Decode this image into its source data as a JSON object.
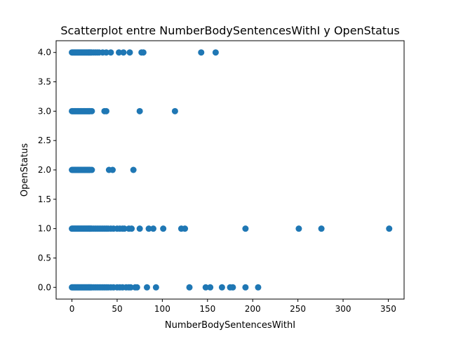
{
  "chart_data": {
    "type": "scatter",
    "title": "Scatterplot entre NumberBodySentencesWithI y OpenStatus",
    "xlabel": "NumberBodySentencesWithI",
    "ylabel": "OpenStatus",
    "xlim": [
      -17.5,
      367.5
    ],
    "ylim": [
      -0.2,
      4.2
    ],
    "xticks": [
      0,
      50,
      100,
      150,
      200,
      250,
      300,
      350
    ],
    "xtick_labels": [
      "0",
      "50",
      "100",
      "150",
      "200",
      "250",
      "300",
      "350"
    ],
    "yticks": [
      0.0,
      0.5,
      1.0,
      1.5,
      2.0,
      2.5,
      3.0,
      3.5,
      4.0
    ],
    "ytick_labels": [
      "0.0",
      "0.5",
      "1.0",
      "1.5",
      "2.0",
      "2.5",
      "3.0",
      "3.5",
      "4.0"
    ],
    "grid": false,
    "legend": "none",
    "marker_color": "#1f77b4",
    "series": [
      {
        "x": [
          0,
          1,
          2,
          3,
          4,
          5,
          6,
          7,
          8,
          9,
          10,
          11,
          12,
          13,
          14,
          15,
          16,
          17,
          18,
          19,
          20,
          21,
          22,
          24,
          26,
          28,
          30,
          32,
          34,
          36,
          38,
          40,
          43,
          46,
          50,
          53,
          56,
          60,
          63,
          65,
          70,
          72,
          83,
          93,
          130,
          148,
          153,
          166,
          175,
          178,
          192,
          206,
          0,
          1,
          2,
          3,
          4,
          5,
          6,
          7,
          8,
          9,
          10,
          11,
          12,
          13,
          14,
          15,
          16,
          17,
          18,
          19,
          20,
          21,
          22,
          24,
          26,
          28,
          30,
          32,
          34,
          36,
          38,
          40,
          43,
          46,
          50,
          53,
          56,
          58,
          63,
          66,
          75,
          85,
          90,
          101,
          121,
          125,
          192,
          251,
          276,
          351,
          0,
          1,
          2,
          3,
          4,
          5,
          6,
          7,
          8,
          9,
          10,
          11,
          12,
          13,
          14,
          15,
          16,
          17,
          18,
          19,
          20,
          22,
          41,
          45,
          68,
          0,
          1,
          2,
          3,
          4,
          5,
          6,
          7,
          8,
          9,
          10,
          11,
          12,
          13,
          14,
          15,
          16,
          17,
          18,
          19,
          20,
          22,
          36,
          38,
          75,
          114,
          0,
          1,
          2,
          3,
          4,
          5,
          6,
          7,
          8,
          9,
          10,
          11,
          12,
          13,
          14,
          15,
          16,
          17,
          18,
          19,
          20,
          21,
          22,
          24,
          26,
          28,
          30,
          34,
          38,
          43,
          52,
          57,
          64,
          77,
          79,
          143,
          159
        ],
        "y": [
          0,
          0,
          0,
          0,
          0,
          0,
          0,
          0,
          0,
          0,
          0,
          0,
          0,
          0,
          0,
          0,
          0,
          0,
          0,
          0,
          0,
          0,
          0,
          0,
          0,
          0,
          0,
          0,
          0,
          0,
          0,
          0,
          0,
          0,
          0,
          0,
          0,
          0,
          0,
          0,
          0,
          0,
          0,
          0,
          0,
          0,
          0,
          0,
          0,
          0,
          0,
          0,
          1,
          1,
          1,
          1,
          1,
          1,
          1,
          1,
          1,
          1,
          1,
          1,
          1,
          1,
          1,
          1,
          1,
          1,
          1,
          1,
          1,
          1,
          1,
          1,
          1,
          1,
          1,
          1,
          1,
          1,
          1,
          1,
          1,
          1,
          1,
          1,
          1,
          1,
          1,
          1,
          1,
          1,
          1,
          1,
          1,
          1,
          1,
          1,
          1,
          1,
          2,
          2,
          2,
          2,
          2,
          2,
          2,
          2,
          2,
          2,
          2,
          2,
          2,
          2,
          2,
          2,
          2,
          2,
          2,
          2,
          2,
          2,
          2,
          2,
          2,
          3,
          3,
          3,
          3,
          3,
          3,
          3,
          3,
          3,
          3,
          3,
          3,
          3,
          3,
          3,
          3,
          3,
          3,
          3,
          3,
          3,
          3,
          3,
          3,
          3,
          3,
          4,
          4,
          4,
          4,
          4,
          4,
          4,
          4,
          4,
          4,
          4,
          4,
          4,
          4,
          4,
          4,
          4,
          4,
          4,
          4,
          4,
          4,
          4,
          4,
          4,
          4,
          4,
          4,
          4,
          4,
          4,
          4,
          4,
          4,
          4,
          4,
          4
        ]
      }
    ]
  }
}
